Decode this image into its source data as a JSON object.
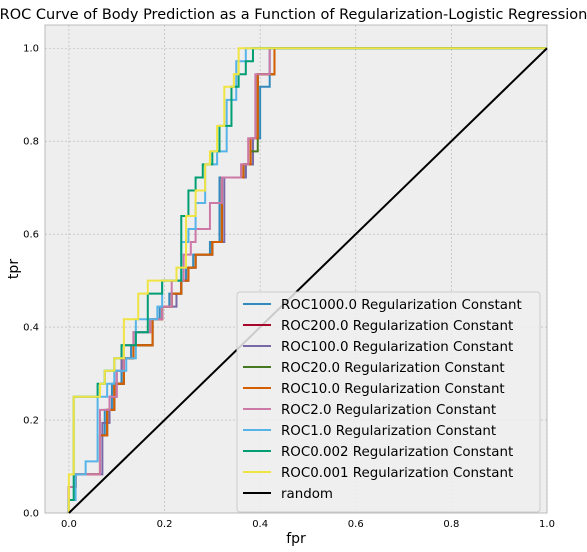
{
  "chart_data": {
    "type": "line",
    "title": "ROC Curve of Body Prediction as a Function of Regularization-Logistic Regression",
    "xlabel": "fpr",
    "ylabel": "tpr",
    "xlim": [
      -0.05,
      1.0
    ],
    "ylim": [
      0.0,
      1.05
    ],
    "xticks": [
      0.0,
      0.2,
      0.4,
      0.6,
      0.8,
      1.0
    ],
    "xtick_labels": [
      "0.0",
      "0.2",
      "0.4",
      "0.6",
      "0.8",
      "1.0"
    ],
    "yticks": [
      0.0,
      0.2,
      0.4,
      0.6,
      0.8,
      1.0
    ],
    "ytick_labels": [
      "0.0",
      "0.2",
      "0.4",
      "0.6",
      "0.8",
      "1.0"
    ],
    "grid": true,
    "legend_position": "lower-right",
    "series": [
      {
        "name": "ROC1000.0 Regularization Constant",
        "color": "#348ABD",
        "x": [
          0.0,
          0.0,
          0.014,
          0.014,
          0.065,
          0.065,
          0.075,
          0.075,
          0.09,
          0.09,
          0.11,
          0.11,
          0.13,
          0.13,
          0.175,
          0.175,
          0.19,
          0.19,
          0.21,
          0.21,
          0.235,
          0.235,
          0.245,
          0.245,
          0.26,
          0.26,
          0.295,
          0.295,
          0.315,
          0.315,
          0.37,
          0.37,
          0.385,
          0.385,
          0.4,
          0.4,
          0.42,
          0.42,
          1.0
        ],
        "y": [
          0.0,
          0.056,
          0.056,
          0.083,
          0.083,
          0.167,
          0.167,
          0.222,
          0.222,
          0.278,
          0.278,
          0.333,
          0.333,
          0.361,
          0.361,
          0.417,
          0.417,
          0.444,
          0.444,
          0.472,
          0.472,
          0.5,
          0.5,
          0.528,
          0.528,
          0.556,
          0.556,
          0.583,
          0.583,
          0.722,
          0.722,
          0.75,
          0.75,
          0.806,
          0.806,
          0.917,
          0.917,
          1.0,
          1.0
        ]
      },
      {
        "name": "ROC200.0 Regularization Constant",
        "color": "#A60628",
        "x": [
          0.0,
          0.0,
          0.014,
          0.014,
          0.065,
          0.065,
          0.08,
          0.08,
          0.095,
          0.095,
          0.115,
          0.115,
          0.135,
          0.135,
          0.175,
          0.175,
          0.195,
          0.195,
          0.215,
          0.215,
          0.235,
          0.235,
          0.25,
          0.25,
          0.265,
          0.265,
          0.3,
          0.3,
          0.32,
          0.32,
          0.365,
          0.365,
          0.38,
          0.38,
          0.395,
          0.395,
          0.43,
          0.43,
          1.0
        ],
        "y": [
          0.0,
          0.056,
          0.056,
          0.083,
          0.083,
          0.167,
          0.167,
          0.222,
          0.222,
          0.278,
          0.278,
          0.333,
          0.333,
          0.361,
          0.361,
          0.417,
          0.417,
          0.444,
          0.444,
          0.472,
          0.472,
          0.5,
          0.5,
          0.528,
          0.528,
          0.556,
          0.556,
          0.583,
          0.583,
          0.722,
          0.722,
          0.75,
          0.75,
          0.806,
          0.806,
          0.944,
          0.944,
          1.0,
          1.0
        ]
      },
      {
        "name": "ROC100.0 Regularization Constant",
        "color": "#7A68A6",
        "x": [
          0.0,
          0.0,
          0.014,
          0.014,
          0.07,
          0.07,
          0.085,
          0.085,
          0.1,
          0.1,
          0.11,
          0.11,
          0.135,
          0.135,
          0.17,
          0.17,
          0.195,
          0.195,
          0.225,
          0.225,
          0.235,
          0.235,
          0.25,
          0.25,
          0.265,
          0.265,
          0.3,
          0.3,
          0.325,
          0.325,
          0.37,
          0.37,
          0.385,
          0.385,
          0.395,
          0.395,
          0.43,
          0.43,
          1.0
        ],
        "y": [
          0.0,
          0.056,
          0.056,
          0.083,
          0.083,
          0.194,
          0.194,
          0.25,
          0.25,
          0.306,
          0.306,
          0.361,
          0.361,
          0.389,
          0.389,
          0.417,
          0.417,
          0.444,
          0.444,
          0.472,
          0.472,
          0.5,
          0.5,
          0.528,
          0.528,
          0.556,
          0.556,
          0.583,
          0.583,
          0.722,
          0.722,
          0.75,
          0.75,
          0.806,
          0.806,
          0.944,
          0.944,
          1.0,
          1.0
        ]
      },
      {
        "name": "ROC20.0 Regularization Constant",
        "color": "#467821",
        "x": [
          0.0,
          0.0,
          0.014,
          0.014,
          0.065,
          0.065,
          0.08,
          0.08,
          0.095,
          0.095,
          0.115,
          0.115,
          0.135,
          0.135,
          0.175,
          0.175,
          0.195,
          0.195,
          0.215,
          0.215,
          0.235,
          0.235,
          0.25,
          0.25,
          0.265,
          0.265,
          0.3,
          0.3,
          0.32,
          0.32,
          0.365,
          0.365,
          0.38,
          0.38,
          0.395,
          0.395,
          0.43,
          0.43,
          1.0
        ],
        "y": [
          0.0,
          0.056,
          0.056,
          0.083,
          0.083,
          0.167,
          0.167,
          0.222,
          0.222,
          0.278,
          0.278,
          0.333,
          0.333,
          0.361,
          0.361,
          0.417,
          0.417,
          0.444,
          0.444,
          0.472,
          0.472,
          0.5,
          0.5,
          0.528,
          0.528,
          0.556,
          0.556,
          0.583,
          0.583,
          0.722,
          0.722,
          0.75,
          0.75,
          0.778,
          0.778,
          0.944,
          0.944,
          1.0,
          1.0
        ]
      },
      {
        "name": "ROC10.0 Regularization Constant",
        "color": "#D55E00",
        "x": [
          0.0,
          0.0,
          0.014,
          0.014,
          0.065,
          0.065,
          0.08,
          0.08,
          0.095,
          0.095,
          0.115,
          0.115,
          0.135,
          0.135,
          0.175,
          0.175,
          0.195,
          0.195,
          0.215,
          0.215,
          0.235,
          0.235,
          0.25,
          0.25,
          0.265,
          0.265,
          0.3,
          0.3,
          0.32,
          0.32,
          0.365,
          0.365,
          0.38,
          0.38,
          0.395,
          0.395,
          0.43,
          0.43,
          1.0
        ],
        "y": [
          0.0,
          0.056,
          0.056,
          0.083,
          0.083,
          0.167,
          0.167,
          0.222,
          0.222,
          0.278,
          0.278,
          0.333,
          0.333,
          0.361,
          0.361,
          0.417,
          0.417,
          0.444,
          0.444,
          0.472,
          0.472,
          0.5,
          0.5,
          0.528,
          0.528,
          0.556,
          0.556,
          0.583,
          0.583,
          0.722,
          0.722,
          0.75,
          0.75,
          0.806,
          0.806,
          0.944,
          0.944,
          1.0,
          1.0
        ]
      },
      {
        "name": "ROC2.0 Regularization Constant",
        "color": "#CC79A7",
        "x": [
          0.0,
          0.0,
          0.014,
          0.014,
          0.065,
          0.065,
          0.085,
          0.085,
          0.1,
          0.1,
          0.115,
          0.115,
          0.135,
          0.135,
          0.17,
          0.17,
          0.195,
          0.195,
          0.215,
          0.215,
          0.24,
          0.24,
          0.255,
          0.255,
          0.265,
          0.265,
          0.295,
          0.295,
          0.32,
          0.32,
          0.36,
          0.36,
          0.375,
          0.375,
          0.39,
          0.39,
          0.42,
          0.42,
          1.0
        ],
        "y": [
          0.0,
          0.056,
          0.056,
          0.083,
          0.083,
          0.222,
          0.222,
          0.25,
          0.25,
          0.306,
          0.306,
          0.361,
          0.361,
          0.389,
          0.389,
          0.417,
          0.417,
          0.444,
          0.444,
          0.5,
          0.5,
          0.556,
          0.556,
          0.583,
          0.583,
          0.611,
          0.611,
          0.667,
          0.667,
          0.722,
          0.722,
          0.75,
          0.75,
          0.806,
          0.806,
          0.944,
          0.944,
          1.0,
          1.0
        ]
      },
      {
        "name": "ROC1.0 Regularization Constant",
        "color": "#56B4E9",
        "x": [
          0.0,
          0.0,
          0.014,
          0.014,
          0.035,
          0.035,
          0.06,
          0.06,
          0.08,
          0.08,
          0.095,
          0.095,
          0.12,
          0.12,
          0.14,
          0.14,
          0.185,
          0.185,
          0.195,
          0.195,
          0.235,
          0.235,
          0.25,
          0.25,
          0.265,
          0.265,
          0.285,
          0.285,
          0.31,
          0.31,
          0.33,
          0.33,
          0.35,
          0.35,
          0.37,
          0.37,
          0.385,
          0.385,
          0.4,
          0.4,
          1.0
        ],
        "y": [
          0.0,
          0.028,
          0.028,
          0.083,
          0.083,
          0.111,
          0.111,
          0.25,
          0.25,
          0.278,
          0.278,
          0.306,
          0.306,
          0.333,
          0.333,
          0.417,
          0.417,
          0.444,
          0.444,
          0.5,
          0.5,
          0.583,
          0.583,
          0.611,
          0.611,
          0.667,
          0.667,
          0.75,
          0.75,
          0.778,
          0.778,
          0.889,
          0.889,
          0.972,
          0.972,
          1.0,
          1.0,
          1.0,
          1.0,
          1.0,
          1.0
        ]
      },
      {
        "name": "ROC0.002 Regularization Constant",
        "color": "#009E73",
        "x": [
          0.0,
          0.0,
          0.01,
          0.01,
          0.06,
          0.06,
          0.075,
          0.075,
          0.095,
          0.095,
          0.11,
          0.11,
          0.14,
          0.14,
          0.165,
          0.165,
          0.195,
          0.195,
          0.235,
          0.235,
          0.25,
          0.25,
          0.265,
          0.265,
          0.28,
          0.28,
          0.3,
          0.3,
          0.315,
          0.315,
          0.34,
          0.34,
          0.355,
          0.355,
          0.37,
          0.37,
          0.385,
          0.385,
          1.0
        ],
        "y": [
          0.0,
          0.028,
          0.028,
          0.25,
          0.25,
          0.278,
          0.278,
          0.306,
          0.306,
          0.333,
          0.333,
          0.361,
          0.361,
          0.389,
          0.389,
          0.472,
          0.472,
          0.5,
          0.5,
          0.639,
          0.639,
          0.694,
          0.694,
          0.722,
          0.722,
          0.75,
          0.75,
          0.778,
          0.778,
          0.833,
          0.833,
          0.917,
          0.917,
          0.944,
          0.944,
          0.972,
          0.972,
          1.0,
          1.0
        ]
      },
      {
        "name": "ROC0.001 Regularization Constant",
        "color": "#F0E442",
        "x": [
          0.0,
          0.0,
          0.01,
          0.01,
          0.065,
          0.065,
          0.075,
          0.075,
          0.095,
          0.095,
          0.115,
          0.115,
          0.145,
          0.145,
          0.165,
          0.165,
          0.195,
          0.195,
          0.225,
          0.225,
          0.245,
          0.245,
          0.265,
          0.265,
          0.285,
          0.285,
          0.295,
          0.295,
          0.31,
          0.31,
          0.325,
          0.325,
          0.345,
          0.345,
          0.355,
          0.355,
          0.385,
          0.385,
          1.0
        ],
        "y": [
          0.0,
          0.083,
          0.083,
          0.25,
          0.25,
          0.278,
          0.278,
          0.306,
          0.306,
          0.333,
          0.333,
          0.417,
          0.417,
          0.472,
          0.472,
          0.5,
          0.5,
          0.5,
          0.5,
          0.528,
          0.528,
          0.639,
          0.639,
          0.694,
          0.694,
          0.75,
          0.75,
          0.778,
          0.778,
          0.833,
          0.833,
          0.917,
          0.917,
          0.944,
          0.944,
          1.0,
          1.0,
          1.0,
          1.0
        ]
      },
      {
        "name": "random",
        "color": "#000000",
        "x": [
          0.0,
          1.0
        ],
        "y": [
          0.0,
          1.0
        ]
      }
    ]
  }
}
